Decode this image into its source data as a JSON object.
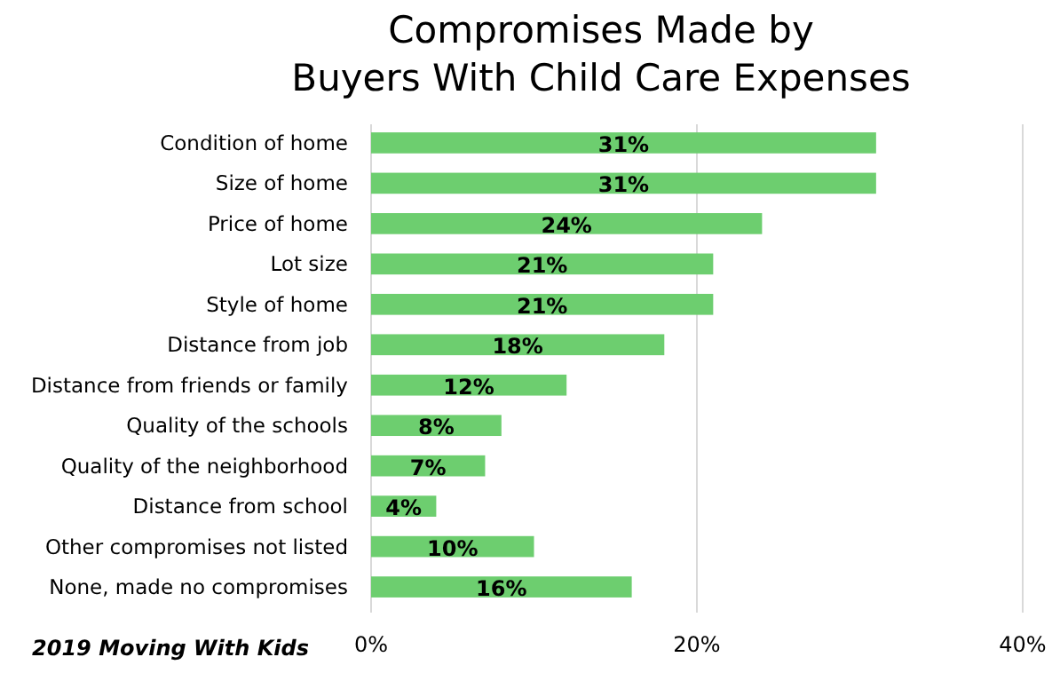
{
  "chart_data": {
    "type": "bar",
    "orientation": "horizontal",
    "title": "Compromises Made by\nBuyers With Child Care Expenses",
    "categories": [
      "Condition of home",
      "Size of home",
      "Price of home",
      "Lot size",
      "Style of home",
      "Distance from job",
      "Distance from friends or family",
      "Quality of the schools",
      "Quality of the neighborhood",
      "Distance from school",
      "Other compromises not listed",
      "None, made no compromises"
    ],
    "values": [
      31,
      31,
      24,
      21,
      21,
      18,
      12,
      8,
      7,
      4,
      10,
      16
    ],
    "value_labels": [
      "31%",
      "31%",
      "24%",
      "21%",
      "21%",
      "18%",
      "12%",
      "8%",
      "7%",
      "4%",
      "10%",
      "16%"
    ],
    "color": "#6dce6f",
    "xlim": [
      0,
      40
    ],
    "xticks": [
      {
        "value": 0,
        "label": "0%"
      },
      {
        "value": 20,
        "label": "20%"
      },
      {
        "value": 40,
        "label": "40%"
      }
    ],
    "grid": "x",
    "annotations": [
      "2019 Moving With Kids"
    ]
  }
}
